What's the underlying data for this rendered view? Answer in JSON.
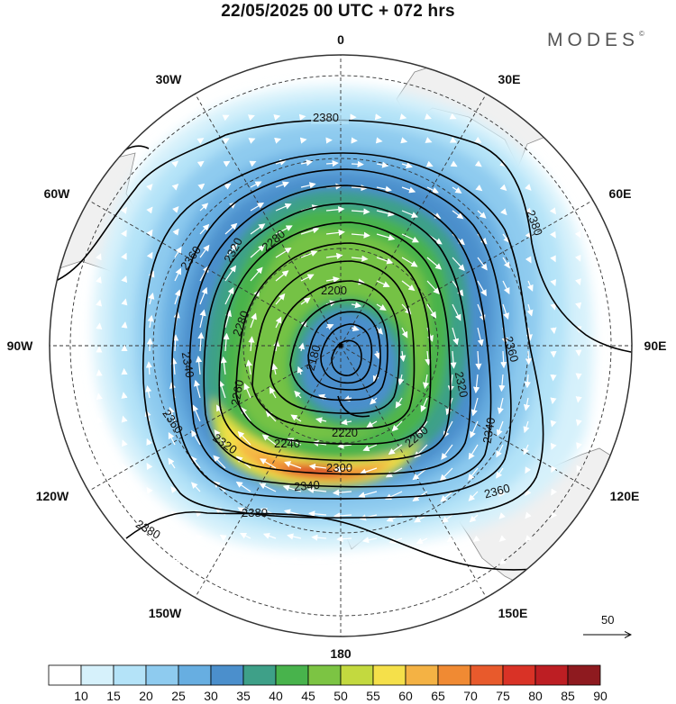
{
  "title": "22/05/2025  00 UTC  + 072 hrs",
  "brand": "MODES",
  "brand_mark": "©",
  "map": {
    "projection": "polar stereographic (south pole)",
    "longitude_labels": [
      {
        "text": "0",
        "name": "lon-label-0"
      },
      {
        "text": "30E",
        "name": "lon-label-30e"
      },
      {
        "text": "60E",
        "name": "lon-label-60e"
      },
      {
        "text": "90E",
        "name": "lon-label-90e"
      },
      {
        "text": "120E",
        "name": "lon-label-120e"
      },
      {
        "text": "150E",
        "name": "lon-label-150e"
      },
      {
        "text": "180",
        "name": "lon-label-180"
      },
      {
        "text": "150W",
        "name": "lon-label-150w"
      },
      {
        "text": "120W",
        "name": "lon-label-120w"
      },
      {
        "text": "90W",
        "name": "lon-label-90w"
      },
      {
        "text": "60W",
        "name": "lon-label-60w"
      },
      {
        "text": "30W",
        "name": "lon-label-30w"
      }
    ],
    "contours": [
      {
        "value": "2380"
      },
      {
        "value": "2380"
      },
      {
        "value": "2380"
      },
      {
        "value": "2380"
      },
      {
        "value": "2360"
      },
      {
        "value": "2360"
      },
      {
        "value": "2360"
      },
      {
        "value": "2360"
      },
      {
        "value": "2340"
      },
      {
        "value": "2340"
      },
      {
        "value": "2340"
      },
      {
        "value": "2320"
      },
      {
        "value": "2320"
      },
      {
        "value": "2320"
      },
      {
        "value": "2300"
      },
      {
        "value": "2280"
      },
      {
        "value": "2280"
      },
      {
        "value": "2260"
      },
      {
        "value": "2260"
      },
      {
        "value": "2240"
      },
      {
        "value": "2220"
      },
      {
        "value": "2200"
      },
      {
        "value": "2180"
      }
    ],
    "vector_reference": "50",
    "colors": {
      "land": "#f0f0f0",
      "coast": "#8a8a8a",
      "grid": "#333333",
      "contour": "#000000",
      "vectors": "#ffffff"
    }
  },
  "colorbar": {
    "labels": [
      "10",
      "15",
      "20",
      "25",
      "30",
      "35",
      "40",
      "45",
      "50",
      "55",
      "60",
      "65",
      "70",
      "75",
      "80",
      "85",
      "90"
    ],
    "colors": [
      "#ffffff",
      "#d6f1fb",
      "#b4e3f8",
      "#8ecbef",
      "#67aee1",
      "#4b8fcc",
      "#3ea088",
      "#48b34c",
      "#7cc443",
      "#c3d93f",
      "#f5e04a",
      "#f4b244",
      "#f08a33",
      "#e85a2c",
      "#d93226",
      "#bd1e23",
      "#8e1a1f"
    ]
  }
}
